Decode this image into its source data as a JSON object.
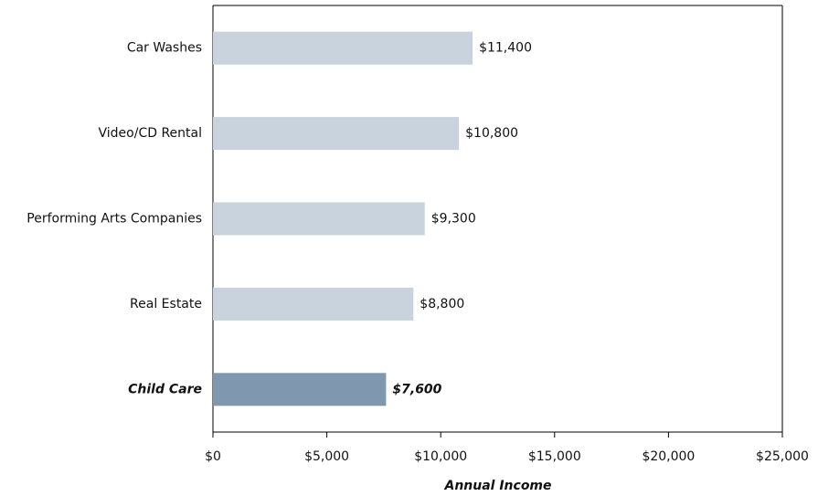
{
  "chart_data": {
    "type": "barh",
    "categories": [
      "Car Washes",
      "Video/CD Rental",
      "Performing Arts Companies",
      "Real Estate",
      "Child Care"
    ],
    "values": [
      11400,
      10800,
      9300,
      8800,
      7600
    ],
    "value_labels": [
      "$11,400",
      "$10,800",
      "$9,300",
      "$8,800",
      "$7,600"
    ],
    "colors": [
      "#c9d3dd",
      "#c9d3dd",
      "#c9d3dd",
      "#c9d3dd",
      "#7f98b0"
    ],
    "highlight": 4,
    "xlabel": "Annual Income",
    "xlim": [
      0,
      25000
    ],
    "xticks": [
      {
        "value": 0,
        "label": "$0"
      },
      {
        "value": 5000,
        "label": "$5,000"
      },
      {
        "value": 10000,
        "label": "$10,000"
      },
      {
        "value": 15000,
        "label": "$15,000"
      },
      {
        "value": 20000,
        "label": "$20,000"
      },
      {
        "value": 25000,
        "label": "$25,000"
      }
    ]
  }
}
